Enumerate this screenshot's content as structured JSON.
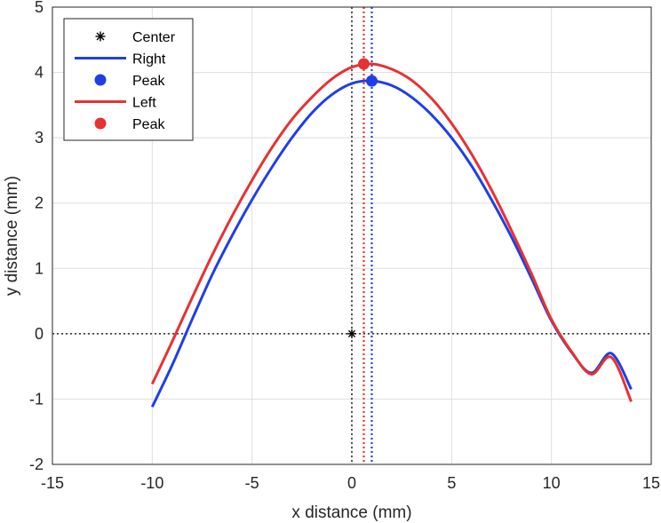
{
  "chart_data": {
    "type": "line",
    "title": "",
    "xlabel": "x distance (mm)",
    "ylabel": "y distance (mm)",
    "xlim": [
      -15,
      15
    ],
    "ylim": [
      -2,
      5
    ],
    "xticks": [
      -15,
      -10,
      -5,
      0,
      5,
      10,
      15
    ],
    "yticks": [
      -2,
      -1,
      0,
      1,
      2,
      3,
      4,
      5
    ],
    "grid": true,
    "legend_position": "top-left",
    "center": {
      "name": "Center",
      "x": 0,
      "y": 0,
      "color": "#000000"
    },
    "reference_lines": [
      {
        "orientation": "vertical",
        "value": 0,
        "color": "#000000",
        "style": "dotted"
      },
      {
        "orientation": "horizontal",
        "value": 0,
        "color": "#000000",
        "style": "dotted"
      },
      {
        "orientation": "vertical",
        "value": 1.0,
        "color": "#1f3fe6",
        "style": "dotted"
      },
      {
        "orientation": "vertical",
        "value": 0.6,
        "color": "#e63232",
        "style": "dotted"
      }
    ],
    "series": [
      {
        "name": "Right",
        "color": "#1f3fe6",
        "x": [
          -10,
          -9,
          -8,
          -7,
          -6,
          -5,
          -4,
          -3,
          -2,
          -1,
          0,
          1,
          2,
          3,
          4,
          5,
          6,
          7,
          8,
          9,
          10,
          11,
          12,
          13,
          14
        ],
        "y": [
          -1.12,
          -0.48,
          0.22,
          0.9,
          1.5,
          2.05,
          2.55,
          3.0,
          3.38,
          3.66,
          3.83,
          3.87,
          3.8,
          3.62,
          3.35,
          3.0,
          2.57,
          2.05,
          1.48,
          0.85,
          0.2,
          -0.28,
          -0.6,
          -0.3,
          -0.85
        ],
        "peak": {
          "name": "Peak",
          "x": 1.0,
          "y": 3.87
        }
      },
      {
        "name": "Left",
        "color": "#e63232",
        "x": [
          -10,
          -9,
          -8,
          -7,
          -6,
          -5,
          -4,
          -3,
          -2,
          -1,
          0,
          1,
          2,
          3,
          4,
          5,
          6,
          7,
          8,
          9,
          10,
          11,
          12,
          13,
          14
        ],
        "y": [
          -0.77,
          -0.12,
          0.55,
          1.2,
          1.8,
          2.35,
          2.85,
          3.28,
          3.62,
          3.9,
          4.08,
          4.13,
          4.05,
          3.88,
          3.6,
          3.22,
          2.75,
          2.2,
          1.58,
          0.92,
          0.22,
          -0.27,
          -0.62,
          -0.36,
          -1.04
        ],
        "peak": {
          "name": "Peak",
          "x": 0.6,
          "y": 4.13
        }
      }
    ],
    "legend": [
      {
        "label": "Center",
        "symbol": "asterisk",
        "color": "#000000"
      },
      {
        "label": "Right",
        "symbol": "line",
        "color": "#1f3fe6"
      },
      {
        "label": "Peak",
        "symbol": "dot",
        "color": "#1f3fe6"
      },
      {
        "label": "Left",
        "symbol": "line",
        "color": "#e63232"
      },
      {
        "label": "Peak",
        "symbol": "dot",
        "color": "#e63232"
      }
    ]
  }
}
